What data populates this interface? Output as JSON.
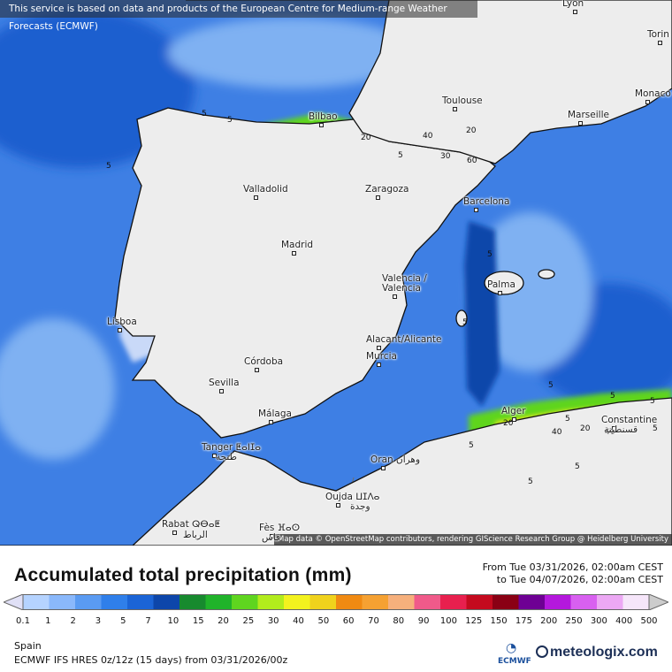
{
  "notice": "This service is based on data and products of the European Centre for Medium-range Weather Forecasts (ECMWF)",
  "credits": "Map data © OpenStreetMap contributors, rendering GIScience Research Group @ Heidelberg University",
  "cities": [
    {
      "name": "Lyon"
    },
    {
      "name": "Torin"
    },
    {
      "name": "Monaco"
    },
    {
      "name": "Toulouse"
    },
    {
      "name": "Marseille"
    },
    {
      "name": "Bilbao"
    },
    {
      "name": "Valladolid"
    },
    {
      "name": "Zaragoza"
    },
    {
      "name": "Barcelona"
    },
    {
      "name": "Madrid"
    },
    {
      "name": "Valencia /"
    },
    {
      "name": "Valencia"
    },
    {
      "name": "Palma"
    },
    {
      "name": "Lisboa"
    },
    {
      "name": "Alacant/Alicante"
    },
    {
      "name": "Murcia"
    },
    {
      "name": "Córdoba"
    },
    {
      "name": "Sevilla"
    },
    {
      "name": "Málaga"
    },
    {
      "name": "Alger"
    },
    {
      "name": "Constantine"
    },
    {
      "name": "قسنطينة"
    },
    {
      "name": "Tanger ⵟⴰⵏⵊⴰ"
    },
    {
      "name": "طنجة"
    },
    {
      "name": "Oran وهران"
    },
    {
      "name": "Oujda ⵡⵊⴷⴰ"
    },
    {
      "name": "وجدة"
    },
    {
      "name": "Rabat ⵕⴱⴰⵟ"
    },
    {
      "name": "الرباط"
    },
    {
      "name": "Fès ⴼⴰⵙ"
    },
    {
      "name": "فاس"
    }
  ],
  "contour_labels": [
    "5",
    "5",
    "5",
    "5",
    "5",
    "5",
    "20",
    "40",
    "20",
    "30",
    "60",
    "5",
    "5",
    "5",
    "5",
    "5",
    "5",
    "20",
    "40",
    "40",
    "5",
    "20",
    "5"
  ],
  "title": "Accumulated total precipitation (mm)",
  "period": {
    "from": "From Tue 03/31/2026, 02:00am CEST",
    "to": "to Tue 04/07/2026, 02:00am CEST"
  },
  "legend": {
    "values": [
      "0.1",
      "1",
      "2",
      "3",
      "5",
      "7",
      "10",
      "15",
      "20",
      "25",
      "30",
      "40",
      "50",
      "60",
      "70",
      "80",
      "90",
      "100",
      "125",
      "150",
      "175",
      "200",
      "250",
      "300",
      "400",
      "500"
    ],
    "colors": [
      "#e0e0f6",
      "#b5d3ff",
      "#8ab8fb",
      "#5a9bf2",
      "#2f7fea",
      "#1b64d6",
      "#0d46aa",
      "#178a2e",
      "#20b32a",
      "#5fd51f",
      "#b2ec1c",
      "#f3f21e",
      "#f0d21c",
      "#f08a12",
      "#f5a132",
      "#f6b07c",
      "#f05a8a",
      "#e8204e",
      "#c40a1e",
      "#8a0014",
      "#6e0094",
      "#b418dd",
      "#d860f0",
      "#eca8f4",
      "#f6e6fa",
      "#cccccc"
    ],
    "arrow_left_color": "#ffffff",
    "arrow_right_color": "#999999"
  },
  "region": "Spain",
  "model": "ECMWF IFS HRES 0z/12z (15 days) from  03/31/2026/00z",
  "logos": {
    "ecmwf": "ECMWF",
    "ecmwf_icon": "ecmwf-logo-icon",
    "meteologix": "meteologix.com",
    "meteologix_icon": "meteologix-logo-icon"
  },
  "map_colors": {
    "sea_base": "#3e7fe4",
    "sea_dark": "#1d5fcf",
    "sea_light": "#7fb1f2",
    "land_dry": "#ededed",
    "land_light": "#c9d9f8",
    "coast": "#111111",
    "border": "#6f6f6f"
  }
}
